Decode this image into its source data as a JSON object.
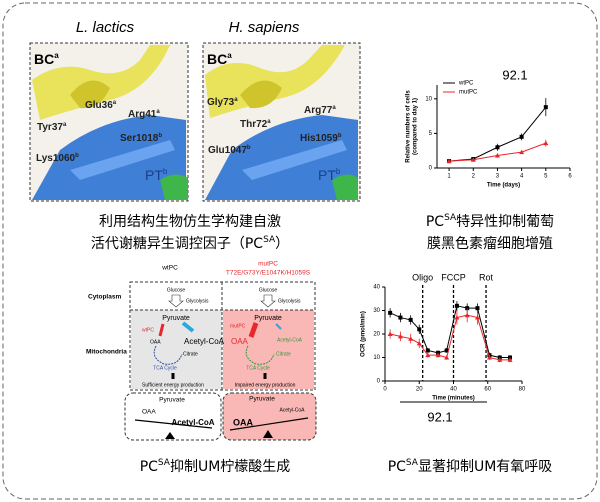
{
  "structure": {
    "species": [
      "L. lactics",
      "H. sapiens"
    ],
    "left": [
      {
        "text": "BC",
        "sup": "a"
      },
      {
        "text": "Glu36",
        "sup": "a"
      },
      {
        "text": "Arg41",
        "sup": "a"
      },
      {
        "text": "Tyr37",
        "sup": "a"
      },
      {
        "text": "Ser1018",
        "sup": "b"
      },
      {
        "text": "Lys1060",
        "sup": "b"
      },
      {
        "text": "PT",
        "sup": "b"
      }
    ],
    "right": [
      {
        "text": "BC",
        "sup": "a"
      },
      {
        "text": "Gly73",
        "sup": "a"
      },
      {
        "text": "Arg77",
        "sup": "a"
      },
      {
        "text": "Thr72",
        "sup": "a"
      },
      {
        "text": "His1059",
        "sup": "b"
      },
      {
        "text": "Glu1047",
        "sup": "b"
      },
      {
        "text": "PT",
        "sup": "b"
      }
    ]
  },
  "captions": [
    {
      "line1": "利用结构生物仿生学构建自激",
      "pre": "活代谢糖异生调控因子（PC",
      "sup": "SA",
      "post": "）"
    },
    {
      "pre": "PC",
      "sup": "SA",
      "post": "特异性抑制葡萄",
      "line2": "膜黑色素瘤细胞增殖"
    },
    {
      "pre": "PC",
      "sup": "SA",
      "post": "抑制UM柠檬酸生成"
    },
    {
      "pre": "PC",
      "sup": "SA",
      "post": "显著抑制UM有氧呼吸"
    }
  ],
  "scheme": {
    "wt_title": "wtPC",
    "mut_title": "mutPC",
    "mutations": "T72E/G73Y/E1047K/H1059S",
    "cytoplasm": "Cytoplasm",
    "mitochondria": "Mitochondria",
    "wt": {
      "glucose": "Glucose",
      "glycolysis": "Glycolysis",
      "pyruvate": "Pyruvate",
      "enzyme": "wtPC",
      "oaa": "OAA",
      "acetyl": "Acetyl-CoA",
      "citrate": "Citrate",
      "tca": "TCA Cycle",
      "energy": "Sufficient energy production"
    },
    "mut": {
      "glucose": "Glucose",
      "glycolysis": "Glycolysis",
      "pyruvate": "Pyruvate",
      "enzyme": "mutPC",
      "oaa": "OAA",
      "acetyl": "Acetyl-CoA",
      "citrate": "Citrate",
      "tca": "TCA Cycle",
      "energy": "Impaired energy production"
    },
    "balance_wt": {
      "oaa": "OAA",
      "pyruvate": "Pyruvate",
      "acetyl": "Acetyl-CoA"
    },
    "balance_mut": {
      "pyruvate": "Pyruvate",
      "acetyl": "Acetyl-CoA",
      "oaa": "OAA"
    }
  },
  "chart_data": [
    {
      "type": "line",
      "title": "92.1",
      "ylabel": [
        "Relative numbers of cells",
        "(compared to day 1)"
      ],
      "xlabel": "Time (days)",
      "xlim": [
        0.5,
        6
      ],
      "xticks": [
        1,
        2,
        3,
        4,
        5,
        6
      ],
      "ylim": [
        0,
        12
      ],
      "yticks": [
        0,
        5,
        10
      ],
      "legend": "upper-left",
      "x": [
        1,
        2,
        3,
        4,
        5
      ],
      "series": [
        {
          "name": "wtPC",
          "color": "#000000",
          "values": [
            1.0,
            1.3,
            3.0,
            4.5,
            8.8
          ],
          "errors": [
            0.2,
            0.2,
            0.5,
            0.5,
            1.3
          ]
        },
        {
          "name": "mutPC",
          "color": "#e8262b",
          "values": [
            1.0,
            1.2,
            1.8,
            2.3,
            3.6
          ],
          "errors": [
            0.1,
            0.1,
            0.3,
            0.2,
            0.5
          ]
        }
      ]
    },
    {
      "type": "line",
      "title": "92.1",
      "ylabel": [
        "OCR (pmol/min)"
      ],
      "xlabel": "Time (minutes)",
      "xlim": [
        0,
        80
      ],
      "xticks": [
        0,
        20,
        40,
        60,
        80
      ],
      "ylim": [
        0,
        40
      ],
      "yticks": [
        0,
        10,
        20,
        30,
        40
      ],
      "markers": [
        {
          "label": "Oligo",
          "x": 22
        },
        {
          "label": "FCCP",
          "x": 40
        },
        {
          "label": "Rot",
          "x": 59
        }
      ],
      "x": [
        3,
        9,
        15,
        20,
        25,
        31,
        36,
        42,
        48,
        54,
        61,
        67,
        73
      ],
      "series": [
        {
          "color": "#000000",
          "values": [
            29,
            27,
            26,
            22,
            13,
            12,
            13,
            32,
            31,
            31,
            11,
            10,
            10
          ],
          "errors": [
            2,
            2,
            2,
            2,
            1,
            1,
            1,
            2,
            2,
            2,
            1,
            1,
            1
          ]
        },
        {
          "color": "#e8262b",
          "values": [
            20,
            19,
            18,
            16,
            11,
            11,
            10,
            27,
            28,
            27,
            10,
            9,
            9
          ],
          "errors": [
            2,
            2,
            2,
            2,
            1,
            1,
            1,
            3,
            3,
            3,
            1,
            1,
            1
          ]
        }
      ]
    }
  ]
}
